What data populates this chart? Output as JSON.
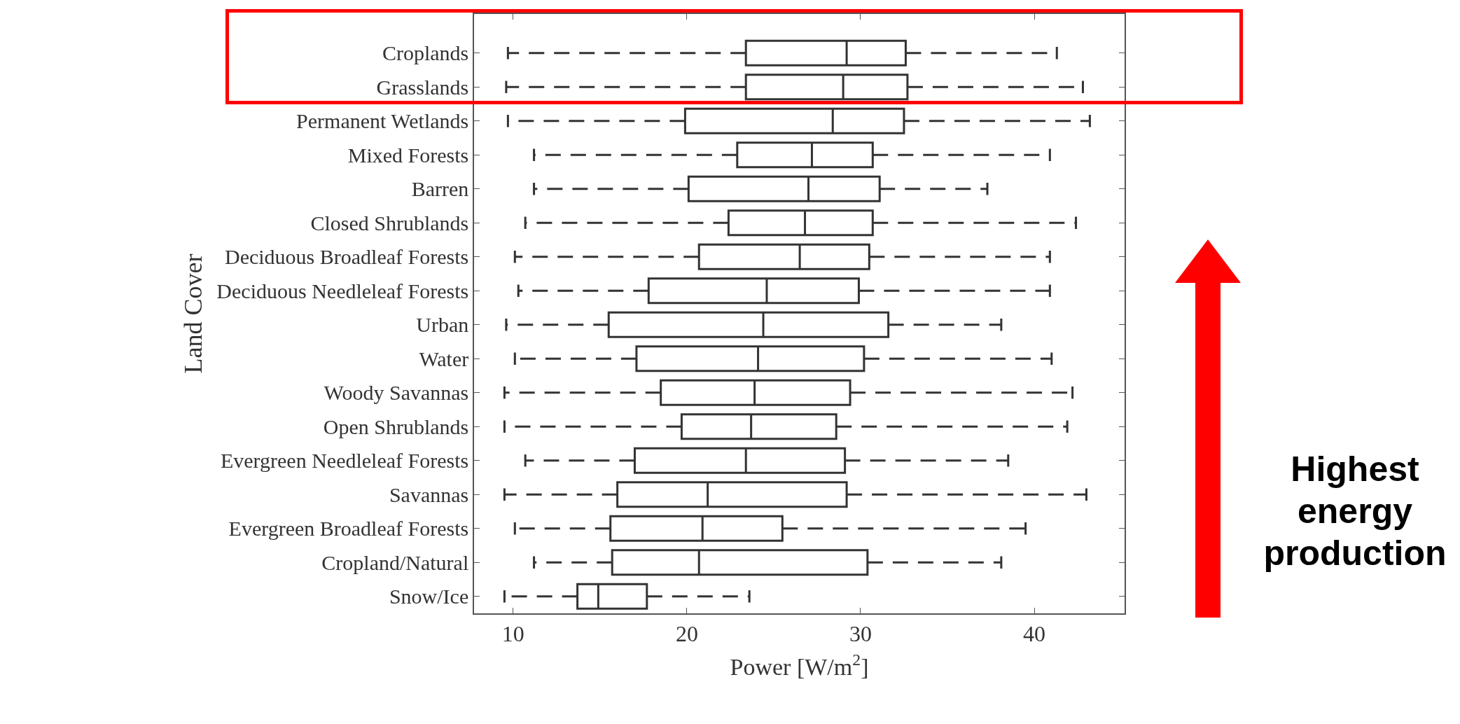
{
  "chart_data": {
    "type": "box",
    "orientation": "horizontal",
    "xlabel": "Power [W/m$^{2}$]",
    "ylabel": "Land Cover",
    "categories": [
      "Croplands",
      "Grasslands",
      "Permanent Wetlands",
      "Mixed Forests",
      "Barren",
      "Closed Shrublands",
      "Deciduous Broadleaf Forests",
      "Deciduous Needleleaf Forests",
      "Urban",
      "Water",
      "Woody Savannas",
      "Open Shrublands",
      "Evergreen Needleleaf Forests",
      "Savannas",
      "Evergreen Broadleaf Forests",
      "Cropland/Natural",
      "Snow/Ice"
    ],
    "xlim": [
      7.75,
      45.2
    ],
    "xticks": [
      10,
      20,
      30,
      40
    ],
    "grid": false,
    "line_style": "dashed",
    "series": [
      {
        "color": "#333333",
        "boxes": [
          {
            "low": 9.7,
            "q1": 23.4,
            "median": 29.2,
            "q3": 32.6,
            "high": 41.3
          },
          {
            "low": 9.6,
            "q1": 23.4,
            "median": 29.0,
            "q3": 32.7,
            "high": 42.8
          },
          {
            "low": 9.7,
            "q1": 19.9,
            "median": 28.4,
            "q3": 32.5,
            "high": 43.2
          },
          {
            "low": 11.2,
            "q1": 22.9,
            "median": 27.2,
            "q3": 30.7,
            "high": 40.9
          },
          {
            "low": 11.2,
            "q1": 20.1,
            "median": 27.0,
            "q3": 31.1,
            "high": 37.3
          },
          {
            "low": 10.7,
            "q1": 22.4,
            "median": 26.8,
            "q3": 30.7,
            "high": 42.4
          },
          {
            "low": 10.1,
            "q1": 20.7,
            "median": 26.5,
            "q3": 30.5,
            "high": 40.9
          },
          {
            "low": 10.3,
            "q1": 17.8,
            "median": 24.6,
            "q3": 29.9,
            "high": 40.9
          },
          {
            "low": 9.6,
            "q1": 15.5,
            "median": 24.4,
            "q3": 31.6,
            "high": 38.1
          },
          {
            "low": 10.1,
            "q1": 17.1,
            "median": 24.1,
            "q3": 30.2,
            "high": 41.0
          },
          {
            "low": 9.5,
            "q1": 18.5,
            "median": 23.9,
            "q3": 29.4,
            "high": 42.2
          },
          {
            "low": 9.5,
            "q1": 19.7,
            "median": 23.7,
            "q3": 28.6,
            "high": 41.9
          },
          {
            "low": 10.7,
            "q1": 17.0,
            "median": 23.4,
            "q3": 29.1,
            "high": 38.5
          },
          {
            "low": 9.5,
            "q1": 16.0,
            "median": 21.2,
            "q3": 29.2,
            "high": 43.0
          },
          {
            "low": 10.1,
            "q1": 15.6,
            "median": 20.9,
            "q3": 25.5,
            "high": 39.5
          },
          {
            "low": 11.2,
            "q1": 15.7,
            "median": 20.7,
            "q3": 30.4,
            "high": 38.1
          },
          {
            "low": 9.5,
            "q1": 13.7,
            "median": 14.9,
            "q3": 17.7,
            "high": 23.6
          }
        ]
      }
    ],
    "annotations": [
      "Highest energy production"
    ]
  }
}
